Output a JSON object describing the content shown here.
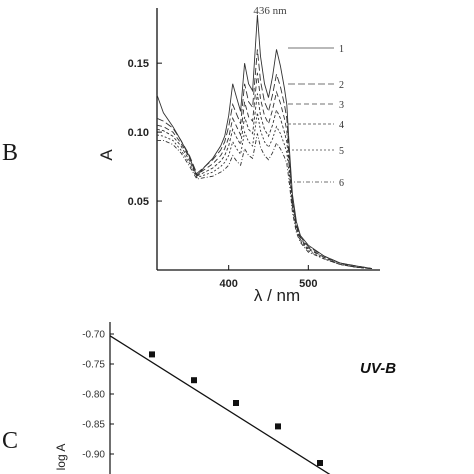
{
  "figure": {
    "panel_b_letter": "B",
    "panel_c_letter": "C"
  },
  "chart_data": [
    {
      "type": "line",
      "panel": "B",
      "xlabel": "λ / nm",
      "ylabel": "A",
      "xlim": [
        310,
        590
      ],
      "ylim": [
        0,
        0.19
      ],
      "x_ticks": [
        400,
        500
      ],
      "y_ticks": [
        0.05,
        0.1,
        0.15
      ],
      "y_tick_labels": [
        "0.05",
        "0.10",
        "0.15"
      ],
      "annotation": "436 nm",
      "legend": [
        "1",
        "2",
        "3",
        "4",
        "5",
        "6"
      ],
      "series": [
        {
          "name": "1",
          "x": [
            310,
            318,
            330,
            340,
            350,
            360,
            370,
            380,
            390,
            395,
            400,
            405,
            410,
            415,
            420,
            425,
            430,
            436,
            440,
            445,
            450,
            455,
            460,
            465,
            470,
            473,
            476,
            480,
            485,
            490,
            500,
            520,
            540,
            560,
            580
          ],
          "y": [
            0.127,
            0.114,
            0.104,
            0.094,
            0.083,
            0.068,
            0.075,
            0.081,
            0.09,
            0.097,
            0.112,
            0.135,
            0.125,
            0.115,
            0.15,
            0.135,
            0.13,
            0.185,
            0.155,
            0.135,
            0.125,
            0.14,
            0.16,
            0.148,
            0.132,
            0.12,
            0.09,
            0.055,
            0.035,
            0.025,
            0.018,
            0.01,
            0.005,
            0.003,
            0.001
          ]
        },
        {
          "name": "2",
          "x": [
            310,
            318,
            330,
            340,
            350,
            360,
            370,
            380,
            390,
            395,
            400,
            405,
            410,
            415,
            420,
            425,
            430,
            436,
            440,
            445,
            450,
            455,
            460,
            465,
            470,
            473,
            476,
            480,
            485,
            490,
            500,
            520,
            540,
            560,
            580
          ],
          "y": [
            0.11,
            0.108,
            0.103,
            0.094,
            0.084,
            0.07,
            0.075,
            0.08,
            0.087,
            0.093,
            0.104,
            0.12,
            0.113,
            0.106,
            0.135,
            0.122,
            0.118,
            0.16,
            0.137,
            0.122,
            0.115,
            0.127,
            0.142,
            0.133,
            0.12,
            0.11,
            0.085,
            0.052,
            0.033,
            0.024,
            0.017,
            0.01,
            0.005,
            0.003,
            0.001
          ]
        },
        {
          "name": "3",
          "x": [
            310,
            318,
            330,
            340,
            350,
            360,
            370,
            380,
            390,
            395,
            400,
            405,
            410,
            415,
            420,
            425,
            430,
            436,
            440,
            445,
            450,
            455,
            460,
            465,
            470,
            473,
            476,
            480,
            485,
            490,
            500,
            520,
            540,
            560,
            580
          ],
          "y": [
            0.105,
            0.104,
            0.1,
            0.092,
            0.082,
            0.069,
            0.073,
            0.077,
            0.083,
            0.088,
            0.096,
            0.11,
            0.104,
            0.098,
            0.122,
            0.111,
            0.108,
            0.143,
            0.124,
            0.112,
            0.106,
            0.116,
            0.129,
            0.121,
            0.11,
            0.101,
            0.08,
            0.05,
            0.032,
            0.023,
            0.016,
            0.009,
            0.005,
            0.002,
            0.001
          ]
        },
        {
          "name": "4",
          "x": [
            310,
            318,
            330,
            340,
            350,
            360,
            370,
            380,
            390,
            395,
            400,
            405,
            410,
            415,
            420,
            425,
            430,
            436,
            440,
            445,
            450,
            455,
            460,
            465,
            470,
            473,
            476,
            480,
            485,
            490,
            500,
            520,
            540,
            560,
            580
          ],
          "y": [
            0.102,
            0.101,
            0.097,
            0.09,
            0.08,
            0.068,
            0.071,
            0.074,
            0.079,
            0.083,
            0.09,
            0.102,
            0.096,
            0.091,
            0.111,
            0.102,
            0.099,
            0.128,
            0.112,
            0.102,
            0.097,
            0.105,
            0.116,
            0.11,
            0.1,
            0.093,
            0.075,
            0.047,
            0.03,
            0.022,
            0.015,
            0.009,
            0.004,
            0.002,
            0.001
          ]
        },
        {
          "name": "5",
          "x": [
            310,
            318,
            330,
            340,
            350,
            360,
            370,
            380,
            390,
            395,
            400,
            405,
            410,
            415,
            420,
            425,
            430,
            436,
            440,
            445,
            450,
            455,
            460,
            465,
            470,
            473,
            476,
            480,
            485,
            490,
            500,
            520,
            540,
            560,
            580
          ],
          "y": [
            0.098,
            0.097,
            0.094,
            0.087,
            0.078,
            0.067,
            0.069,
            0.071,
            0.075,
            0.078,
            0.083,
            0.093,
            0.088,
            0.084,
            0.1,
            0.093,
            0.09,
            0.114,
            0.101,
            0.093,
            0.089,
            0.095,
            0.104,
            0.099,
            0.091,
            0.085,
            0.07,
            0.045,
            0.029,
            0.021,
            0.014,
            0.008,
            0.004,
            0.002,
            0.001
          ]
        },
        {
          "name": "6",
          "x": [
            310,
            318,
            330,
            340,
            350,
            360,
            370,
            380,
            390,
            395,
            400,
            405,
            410,
            415,
            420,
            425,
            430,
            436,
            440,
            445,
            450,
            455,
            460,
            465,
            470,
            473,
            476,
            480,
            485,
            490,
            500,
            520,
            540,
            560,
            580
          ],
          "y": [
            0.094,
            0.094,
            0.091,
            0.085,
            0.076,
            0.066,
            0.067,
            0.068,
            0.071,
            0.073,
            0.076,
            0.083,
            0.079,
            0.076,
            0.088,
            0.083,
            0.081,
            0.099,
            0.089,
            0.083,
            0.08,
            0.085,
            0.092,
            0.088,
            0.082,
            0.077,
            0.064,
            0.042,
            0.027,
            0.02,
            0.013,
            0.008,
            0.004,
            0.002,
            0.001
          ]
        }
      ]
    },
    {
      "type": "scatter",
      "panel": "C",
      "annotation": "UV-B",
      "ylabel": "log A",
      "ylim": [
        -0.92,
        -0.69
      ],
      "y_ticks": [
        -0.7,
        -0.75,
        -0.8,
        -0.85,
        -0.9
      ],
      "y_tick_labels": [
        "-0.70",
        "-0.75",
        "-0.80",
        "-0.85",
        "-0.90"
      ],
      "points": [
        {
          "x": 1,
          "y": -0.734
        },
        {
          "x": 2,
          "y": -0.777
        },
        {
          "x": 3,
          "y": -0.815
        },
        {
          "x": 4,
          "y": -0.854
        },
        {
          "x": 5,
          "y": -0.915
        }
      ],
      "fit": {
        "x": [
          0,
          5.3
        ],
        "y": [
          -0.703,
          -0.937
        ]
      }
    }
  ]
}
